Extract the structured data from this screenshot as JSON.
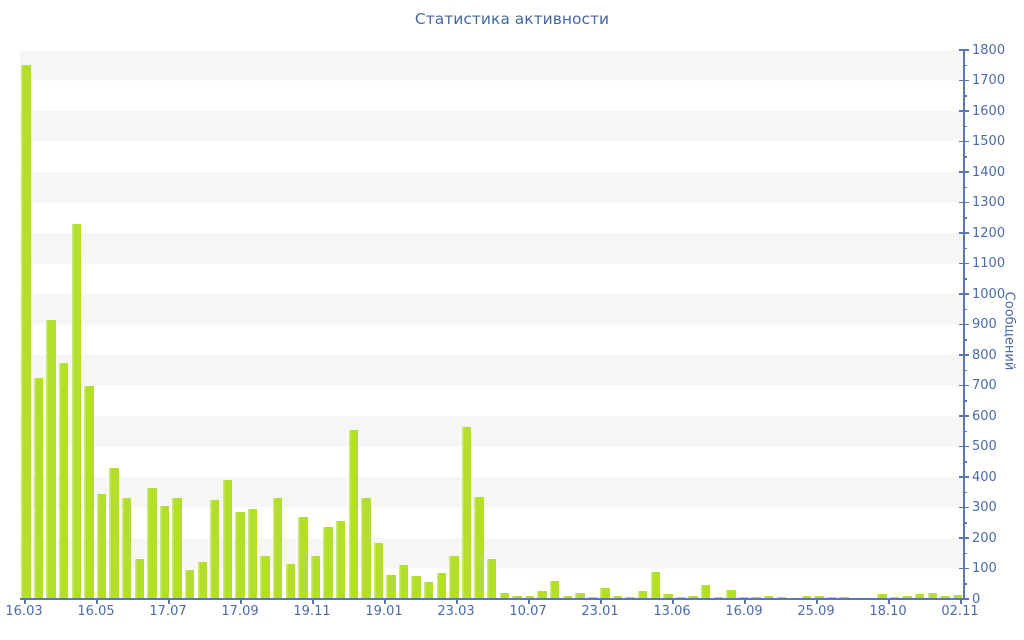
{
  "title": "Статистика активности",
  "chart_data": {
    "type": "bar",
    "title": "Статистика активности",
    "xlabel": "",
    "ylabel": "Сообщений",
    "ylim": [
      0,
      1800
    ],
    "y_tick_step": 100,
    "y_minor_tick_step": 50,
    "grid": "horizontal-stripes",
    "legend": "none",
    "x_tick_labels": [
      "16.03",
      "16.05",
      "17.07",
      "17.09",
      "19.11",
      "19.01",
      "23.03",
      "10.07",
      "23.01",
      "13.06",
      "16.09",
      "25.09",
      "18.10",
      "02.11"
    ],
    "values": [
      1750,
      725,
      915,
      775,
      1230,
      700,
      345,
      430,
      330,
      130,
      365,
      305,
      330,
      95,
      120,
      325,
      390,
      285,
      295,
      140,
      330,
      115,
      270,
      140,
      235,
      255,
      555,
      330,
      185,
      80,
      110,
      75,
      55,
      85,
      140,
      565,
      335,
      130,
      20,
      10,
      10,
      25,
      60,
      10,
      20,
      5,
      35,
      10,
      5,
      25,
      90,
      15,
      5,
      10,
      45,
      5,
      30,
      5,
      7,
      9,
      7,
      4,
      9,
      9,
      7,
      7,
      4,
      3,
      15,
      7,
      9,
      15,
      20,
      9,
      13
    ],
    "colors": {
      "bar": "#b3df2c",
      "bar_highlight": "#cdea75",
      "axis": "#5b78ae",
      "text": "#4a6ba8",
      "stripe": "#f6f6f7",
      "background": "#ffffff"
    }
  }
}
